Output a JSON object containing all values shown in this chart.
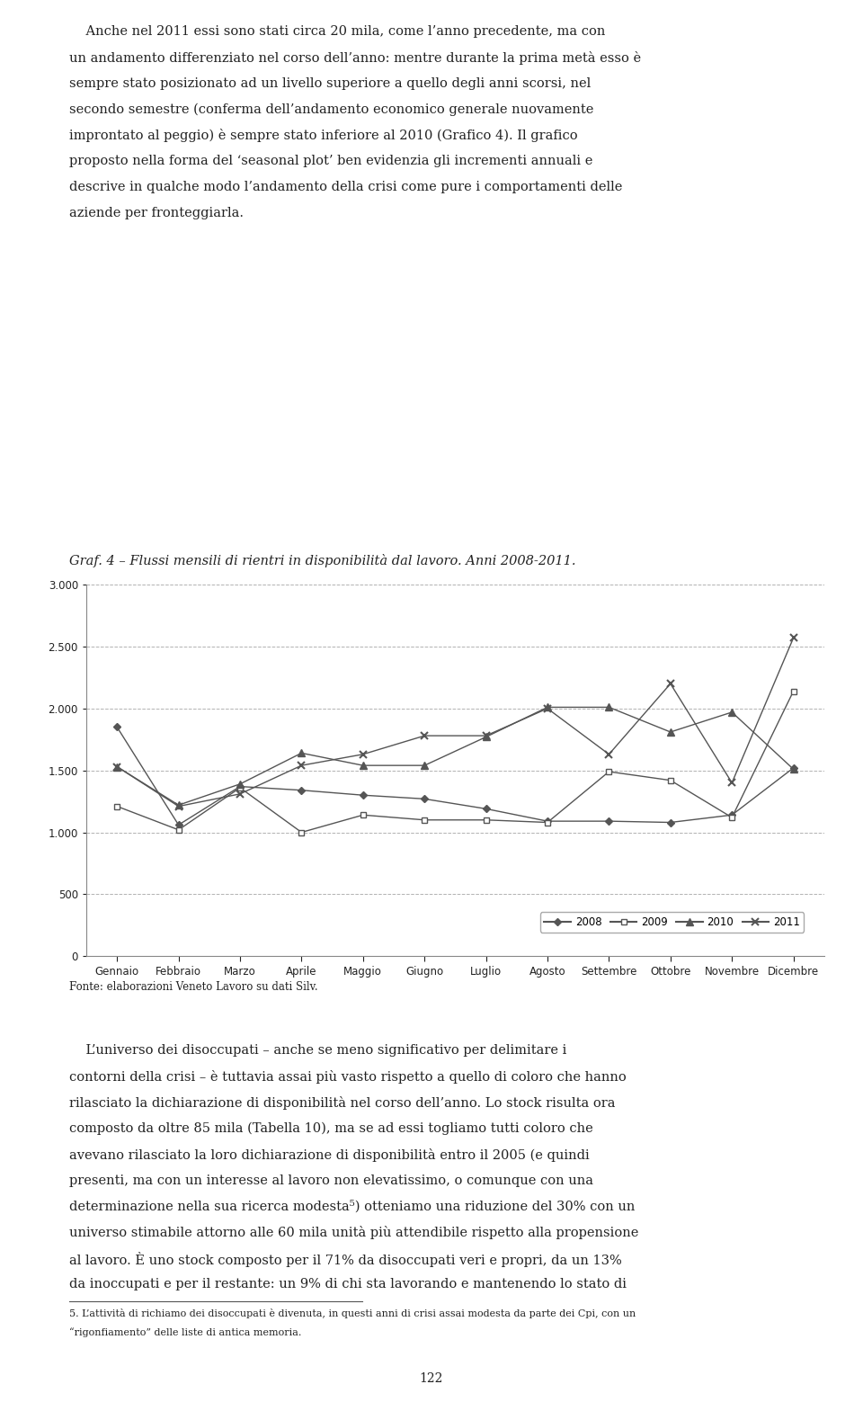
{
  "title": "Graf. 4 – Flussi mensili di rientri in disponibilità dal lavoro. Anni 2008-2011.",
  "xlabel_labels": [
    "Gennaio",
    "Febbraio",
    "Marzo",
    "Aprile",
    "Maggio",
    "Giugno",
    "Luglio",
    "Agosto",
    "Settembre",
    "Ottobre",
    "Novembre",
    "Dicembre"
  ],
  "ylim": [
    0,
    3000
  ],
  "yticks": [
    0,
    500,
    1000,
    1500,
    2000,
    2500,
    3000
  ],
  "series": {
    "2008": [
      1850,
      1060,
      1370,
      1340,
      1300,
      1270,
      1190,
      1090,
      1090,
      1080,
      1140,
      1520
    ],
    "2009": [
      1210,
      1020,
      1360,
      1000,
      1140,
      1100,
      1100,
      1080,
      1490,
      1420,
      1120,
      2140
    ],
    "2010": [
      1530,
      1220,
      1390,
      1640,
      1540,
      1540,
      1770,
      2010,
      2010,
      1810,
      1970,
      1510
    ],
    "2011": [
      1530,
      1210,
      1310,
      1540,
      1630,
      1780,
      1780,
      2000,
      1630,
      2200,
      1400,
      2570
    ]
  },
  "fonte": "Fonte: elaborazioni Veneto Lavoro su dati Silv.",
  "background_color": "#ffffff",
  "grid_color": "#aaaaaa",
  "text_color": "#222222",
  "para_top": "Anche nel 2011 essi sono stati circa 20 mila, come l’anno precedente, ma con un andamento differenziato nel corso dell’anno: mentre durante la prima metà esso è sempre stato posizionato ad un livello superiore a quello degli anni scorsi, nel secondo semestre (conferma dell’andamento economico generale nuovamente improntato al peggio) è sempre stato inferiore al 2010 (Grafico 4). Il grafico proposto nella forma del seasonal plot ben evidenzia gli incrementi annuali e descrive in qualche modo l’andamento della crisi come pure i comportamenti delle aziende per fronteggiarla.",
  "para_bottom": "L’universo dei disoccupati – anche se meno significativo per delimitare i contorni della crisi – è tuttavia assai più vasto rispetto a quello di coloro che hanno rilasciato la dichiarazione di disponibilità nel corso dell’anno. Lo stock risulta ora composto da oltre 85 mila (Tabella 10), ma se ad essi togliamo tutti coloro che avevano rilasciato la loro dichiarazione di disponibilità entro il 2005 (e quindi presenti, ma con un interesse al lavoro non elevatissimo, o comunque con una determinazione nella sua ricerca modesta⁵) otteniamo una riduzione del 30% con un universo stimabile attorno alle 60 mila unità più attendibile rispetto alla propensione al lavoro. È uno stock composto per il 71% da disoccupati veri e propri, da un 13% da inoccupati e per il restante: un 9% di chi sta lavorando e mantenendo lo stato di",
  "footnote": "5. L’attività di richiamo dei disoccupati è divenuta, in questi anni di crisi assai modesta da parte dei Cpi, con un “rigonfiamento” delle liste di antica memoria.",
  "page_number": "122"
}
